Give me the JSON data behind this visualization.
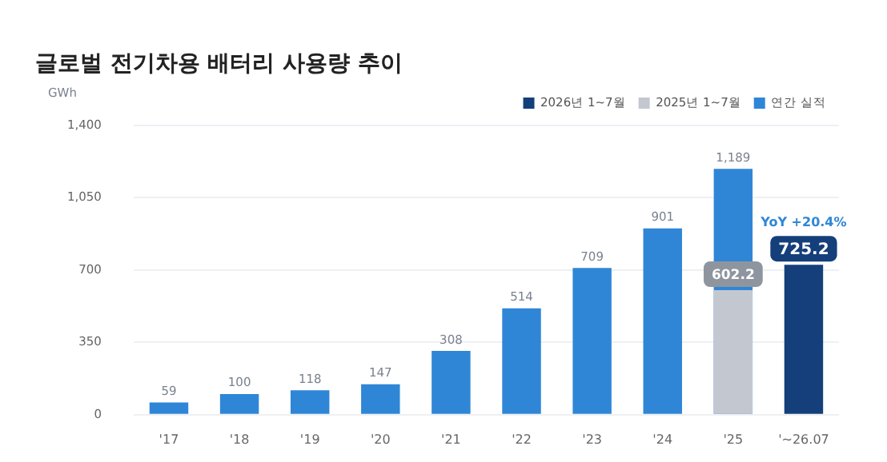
{
  "chart_data": {
    "type": "bar",
    "title": "글로벌 전기차용 배터리 사용량 추이",
    "ylabel": "GWh",
    "categories": [
      "'17",
      "'18",
      "'19",
      "'20",
      "'21",
      "'22",
      "'23",
      "'24",
      "'25",
      "'~26.07"
    ],
    "series": [
      {
        "name": "2026년 1~7월",
        "color": "#143f7a",
        "values": [
          null,
          null,
          null,
          null,
          null,
          null,
          null,
          null,
          null,
          725.2
        ],
        "value_labels": [
          null,
          null,
          null,
          null,
          null,
          null,
          null,
          null,
          null,
          "725.2"
        ]
      },
      {
        "name": "2025년 1~7월",
        "color": "#c3c8d0",
        "values": [
          null,
          null,
          null,
          null,
          null,
          null,
          null,
          null,
          602.2,
          null
        ],
        "value_labels": [
          null,
          null,
          null,
          null,
          null,
          null,
          null,
          null,
          "602.2",
          null
        ]
      },
      {
        "name": "연간 실적",
        "color": "#2f86d6",
        "values": [
          59,
          100,
          118,
          147,
          308,
          514,
          709,
          901,
          1189,
          null
        ],
        "value_labels": [
          "59",
          "100",
          "118",
          "147",
          "308",
          "514",
          "709",
          "901",
          "1,189",
          null
        ]
      }
    ],
    "ylim": [
      0,
      1400
    ],
    "yticks": [
      0,
      350,
      700,
      {
        "value": 1050,
        "label": "1,050"
      },
      {
        "value": 1400,
        "label": "1,400"
      }
    ],
    "grid": "y",
    "legend": "top right",
    "annotations": [
      {
        "text": "YoY +20.4%",
        "x": "'~26.07",
        "y": 725.2
      }
    ]
  }
}
